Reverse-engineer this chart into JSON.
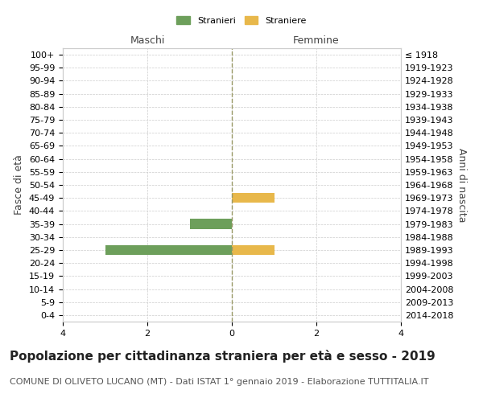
{
  "age_groups": [
    "0-4",
    "5-9",
    "10-14",
    "15-19",
    "20-24",
    "25-29",
    "30-34",
    "35-39",
    "40-44",
    "45-49",
    "50-54",
    "55-59",
    "60-64",
    "65-69",
    "70-74",
    "75-79",
    "80-84",
    "85-89",
    "90-94",
    "95-99",
    "100+"
  ],
  "birth_years": [
    "2014-2018",
    "2009-2013",
    "2004-2008",
    "1999-2003",
    "1994-1998",
    "1989-1993",
    "1984-1988",
    "1979-1983",
    "1974-1978",
    "1969-1973",
    "1964-1968",
    "1959-1963",
    "1954-1958",
    "1949-1953",
    "1944-1948",
    "1939-1943",
    "1934-1938",
    "1929-1933",
    "1924-1928",
    "1919-1923",
    "≤ 1918"
  ],
  "males": [
    0,
    0,
    0,
    0,
    0,
    3,
    0,
    1,
    0,
    0,
    0,
    0,
    0,
    0,
    0,
    0,
    0,
    0,
    0,
    0,
    0
  ],
  "females": [
    0,
    0,
    0,
    0,
    0,
    1,
    0,
    0,
    0,
    1,
    0,
    0,
    0,
    0,
    0,
    0,
    0,
    0,
    0,
    0,
    0
  ],
  "male_color": "#6d9f5b",
  "female_color": "#e8b84b",
  "male_label": "Stranieri",
  "female_label": "Straniere",
  "maschi_label": "Maschi",
  "femmine_label": "Femmine",
  "ylabel_left": "Fasce di età",
  "ylabel_right": "Anni di nascita",
  "xlim": 4,
  "xticks": [
    -4,
    -2,
    0,
    2,
    4
  ],
  "xtick_labels": [
    "4",
    "2",
    "0",
    "2",
    "4"
  ],
  "title": "Popolazione per cittadinanza straniera per età e sesso - 2019",
  "subtitle": "COMUNE DI OLIVETO LUCANO (MT) - Dati ISTAT 1° gennaio 2019 - Elaborazione TUTTITALIA.IT",
  "grid_color": "#cccccc",
  "center_line_color": "#999966",
  "bg_color": "#ffffff",
  "title_fontsize": 11,
  "subtitle_fontsize": 8,
  "tick_fontsize": 8,
  "label_fontsize": 9,
  "bar_height": 0.75
}
